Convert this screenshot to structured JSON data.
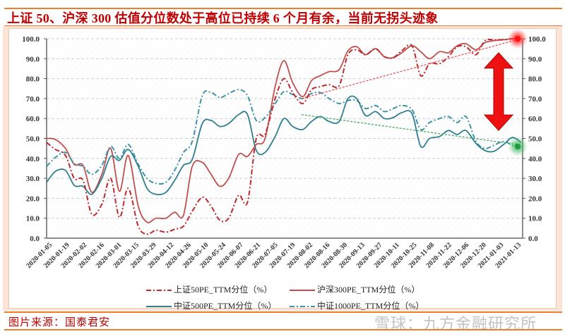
{
  "title": "上证 50、沪深 300  估值分位数处于高位已持续 6  个月有余，当前无拐头迹象",
  "footer": {
    "source": "图片来源：国泰君安",
    "watermark": "雪球：九方金融研究所"
  },
  "colors": {
    "sh50": "#c0282d",
    "hs300": "#c0504d",
    "zz500": "#2e7f92",
    "zz1000": "#3e93a5",
    "title": "#c00000",
    "accent_line": "#f07c2c",
    "frame": "#fbe4d5",
    "trend_red": "#e8545a",
    "trend_green": "#3fae5a",
    "arrow": "#ee1111"
  },
  "chart_data": {
    "type": "line",
    "ylim": [
      0,
      100
    ],
    "yticks": [
      "0.0",
      "10.0",
      "20.0",
      "30.0",
      "40.0",
      "50.0",
      "60.0",
      "70.0",
      "80.0",
      "90.0",
      "100.0"
    ],
    "dual_y_axis_same_scale": true,
    "grid": "horizontal dashed",
    "legend_position": "bottom",
    "xtick_labels": [
      "2020-01-05",
      "2020-01-19",
      "2020-02-02",
      "2020-02-16",
      "2020-03-01",
      "2020-03-15",
      "2020-03-29",
      "2020-04-12",
      "2020-04-26",
      "2020-05-10",
      "2020-05-24",
      "2020-06-07",
      "2020-06-21",
      "2020-07-05",
      "2020-07-19",
      "2020-08-02",
      "2020-08-16",
      "2020-08-30",
      "2020-09-13",
      "2020-09-27",
      "2020-10-11",
      "2020-10-25",
      "2020-11-08",
      "2020-11-22",
      "2020-12-06",
      "2020-12-20",
      "2021-01-03",
      "2021-01-13"
    ],
    "x": [
      "2020-01-05",
      "2020-01-12",
      "2020-01-20",
      "2020-01-27",
      "2020-02-03",
      "2020-02-10",
      "2020-02-18",
      "2020-02-25",
      "2020-03-03",
      "2020-03-10",
      "2020-03-18",
      "2020-03-25",
      "2020-04-01",
      "2020-04-09",
      "2020-04-16",
      "2020-04-23",
      "2020-04-30",
      "2020-05-08",
      "2020-05-15",
      "2020-05-22",
      "2020-05-29",
      "2020-06-06",
      "2020-06-13",
      "2020-06-20",
      "2020-06-27",
      "2020-07-05",
      "2020-07-12",
      "2020-07-19",
      "2020-07-27",
      "2020-08-03",
      "2020-08-10",
      "2020-08-17",
      "2020-08-25",
      "2020-09-01",
      "2020-09-08",
      "2020-09-15",
      "2020-09-23",
      "2020-09-30",
      "2020-10-07",
      "2020-10-14",
      "2020-10-22",
      "2020-10-29",
      "2020-11-05",
      "2020-11-13",
      "2020-11-20",
      "2020-11-27",
      "2020-12-04",
      "2020-12-12",
      "2020-12-19",
      "2020-12-26",
      "2021-01-03",
      "2021-01-08",
      "2021-01-13"
    ],
    "series": [
      {
        "name": "上证50PE_TTM分位（%）",
        "style": "dashdot",
        "color_key": "sh50",
        "values": [
          48,
          44.5,
          41.5,
          30,
          29,
          12,
          17,
          30,
          10.5,
          25,
          6,
          2,
          4,
          3,
          4.5,
          6,
          13.5,
          20.5,
          16,
          9,
          10,
          21.5,
          18,
          50,
          52,
          70,
          80,
          73,
          67.5,
          74.5,
          76,
          77,
          76.5,
          92,
          94.5,
          92,
          95,
          91,
          90.5,
          94,
          96.5,
          81.5,
          87.5,
          87.5,
          91,
          96,
          96,
          92,
          99,
          99.5,
          99.5,
          100,
          100
        ]
      },
      {
        "name": "沪深300PE_TTM分位（%）",
        "style": "solid",
        "color_key": "hs300",
        "values": [
          50,
          49.5,
          45,
          37,
          36.5,
          23,
          32,
          45,
          23.5,
          41.5,
          16,
          8,
          10,
          10,
          13,
          11.5,
          36,
          38,
          32,
          26,
          30,
          42,
          41,
          47,
          50,
          76,
          89,
          78,
          71,
          79,
          81.5,
          83.5,
          84.5,
          94,
          96,
          92,
          95,
          91,
          90.5,
          93,
          96.5,
          93.5,
          90,
          93.5,
          93,
          96.5,
          97.5,
          94.5,
          98,
          99,
          99.5,
          100,
          100
        ]
      },
      {
        "name": "中证500PE_TTM分位（%）",
        "style": "solid",
        "color_key": "zz500",
        "values": [
          28,
          33.5,
          34,
          26.5,
          26,
          22,
          30,
          41,
          39,
          44.5,
          36,
          25,
          22,
          23,
          29,
          36.5,
          39.5,
          57.5,
          59,
          56,
          57.5,
          62,
          62,
          44,
          43,
          51,
          60,
          56,
          54.5,
          58.5,
          61,
          58.5,
          58.5,
          70,
          70,
          61.5,
          63.5,
          60,
          60.5,
          63,
          62.5,
          46,
          50,
          51,
          54,
          52,
          54,
          47.5,
          44,
          43.5,
          47,
          50.5,
          48
        ]
      },
      {
        "name": "中证1000PE_TTM分位（%）",
        "style": "dashdot",
        "color_key": "zz1000",
        "values": [
          36,
          40.5,
          43,
          37.5,
          36,
          32,
          36.5,
          46,
          40,
          47,
          37,
          30,
          27.5,
          28,
          34,
          43,
          48.5,
          71.5,
          73,
          70.5,
          72.5,
          74.5,
          71.5,
          59,
          60.5,
          67.5,
          73.5,
          72,
          70,
          72.5,
          73,
          70,
          67.5,
          69,
          69,
          65,
          66.5,
          63.5,
          65,
          66.5,
          64.5,
          54.5,
          58,
          60,
          61,
          58,
          61,
          48.5,
          45,
          46.5,
          48.5,
          46.5,
          44.5
        ]
      }
    ],
    "annotations": [
      {
        "type": "dotted-trend",
        "color_key": "trend_red",
        "from": [
          "2020-07-26",
          70
        ],
        "to": [
          "2021-01-13",
          99.5
        ]
      },
      {
        "type": "dotted-trend",
        "color_key": "trend_green",
        "from": [
          "2020-07-26",
          62
        ],
        "to": [
          "2021-01-13",
          47
        ]
      },
      {
        "type": "glow-marker",
        "color_key": "trend_red",
        "at": [
          "2021-01-13",
          100
        ]
      },
      {
        "type": "glow-marker",
        "color_key": "trend_green",
        "at": [
          "2021-01-13",
          46
        ]
      },
      {
        "type": "double-arrow",
        "color_key": "arrow",
        "x": "2020-12-30",
        "from": 93,
        "to": 54
      }
    ]
  }
}
